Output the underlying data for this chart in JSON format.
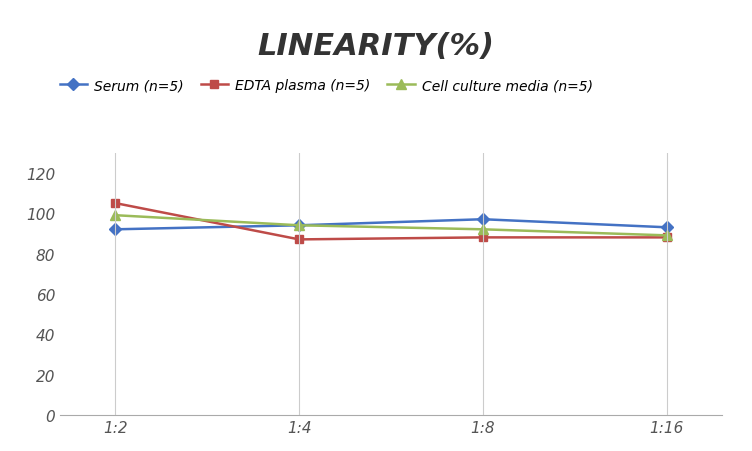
{
  "title": "LINEARITY(%)",
  "x_labels": [
    "1:2",
    "1:4",
    "1:8",
    "1:16"
  ],
  "x_positions": [
    0,
    1,
    2,
    3
  ],
  "series": [
    {
      "label": "Serum (n=5)",
      "values": [
        92,
        94,
        97,
        93
      ],
      "color": "#4472C4",
      "marker": "D",
      "marker_size": 6,
      "linewidth": 1.8
    },
    {
      "label": "EDTA plasma (n=5)",
      "values": [
        105,
        87,
        88,
        88
      ],
      "color": "#BE4B48",
      "marker": "s",
      "marker_size": 6,
      "linewidth": 1.8
    },
    {
      "label": "Cell culture media (n=5)",
      "values": [
        99,
        94,
        92,
        89
      ],
      "color": "#9BBB59",
      "marker": "^",
      "marker_size": 7,
      "linewidth": 1.8
    }
  ],
  "ylim": [
    0,
    130
  ],
  "yticks": [
    0,
    20,
    40,
    60,
    80,
    100,
    120
  ],
  "background_color": "#ffffff",
  "title_fontsize": 22,
  "title_style": "italic",
  "title_weight": "bold",
  "legend_fontsize": 10,
  "tick_fontsize": 11,
  "grid_color": "#cccccc",
  "grid_linewidth": 0.8
}
